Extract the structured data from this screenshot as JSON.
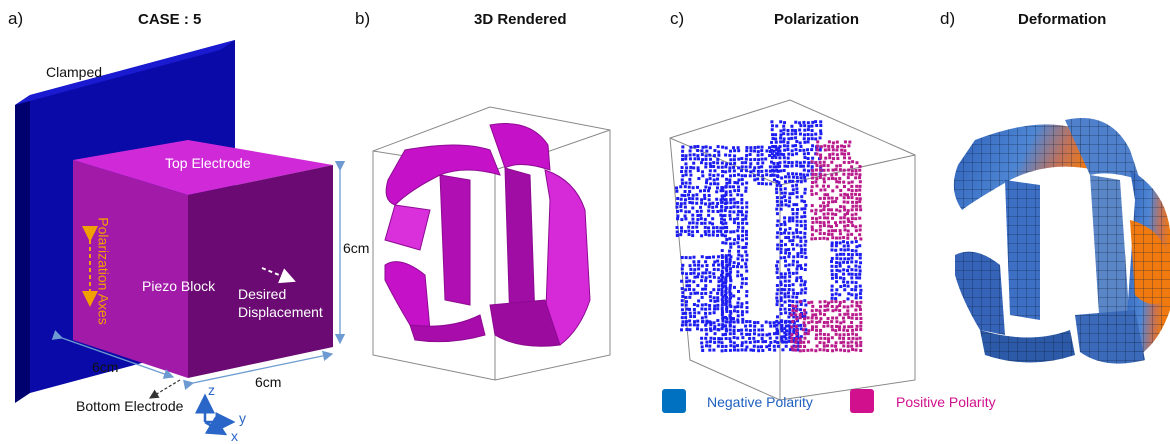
{
  "panels": {
    "a": {
      "letter": "a)",
      "title": "CASE : 5"
    },
    "b": {
      "letter": "b)",
      "title": "3D Rendered"
    },
    "c": {
      "letter": "c)",
      "title": "Polarization"
    },
    "d": {
      "letter": "d)",
      "title": "Deformation"
    }
  },
  "schematic": {
    "clamped": "Clamped",
    "top_electrode": "Top Electrode",
    "polarization_axes": "Polarization Axes",
    "piezo_block": "Piezo Block",
    "desired_displacement_1": "Desired",
    "desired_displacement_2": "Displacement",
    "dim_height": "6cm",
    "dim_depth": "6cm",
    "dim_width": "6cm",
    "bottom_electrode": "Bottom Electrode",
    "axis_z": "z",
    "axis_y": "y",
    "axis_x": "x"
  },
  "legend": {
    "negative": {
      "label": "Negative Polarity",
      "color": "#0070c0"
    },
    "positive": {
      "label": "Positive Polarity",
      "color": "#d0108c"
    }
  },
  "colors": {
    "clamp": "#0a0a9e",
    "block_front": "#a11aa8",
    "block_top": "#d02ad8",
    "block_side": "#6a0a72",
    "rendered": "#c512c9",
    "negative": "#1c1cf0",
    "positive": "#b81a8c",
    "label_orange": "#f0a000",
    "label_magenta": "#d0108c",
    "label_blue": "#1f5fc0"
  }
}
